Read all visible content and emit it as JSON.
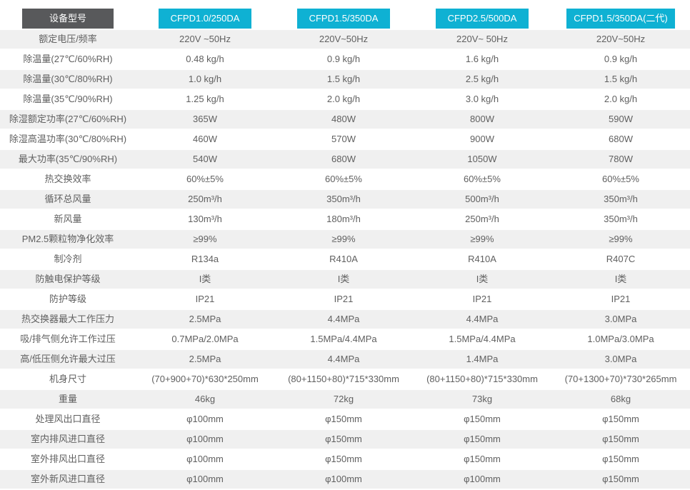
{
  "colors": {
    "corner_header_bg": "#58595b",
    "model_header_bg": "#0fb1d3",
    "alt_row_bg": "#f0f0f0",
    "row_bg": "#ffffff",
    "text": "#606060",
    "header_text": "#ffffff"
  },
  "chart_data": {
    "type": "table",
    "corner_label": "设备型号",
    "columns": [
      "CFPD1.0/250DA",
      "CFPD1.5/350DA",
      "CFPD2.5/500DA",
      "CFPD1.5/350DA(二代)"
    ],
    "rows": [
      {
        "label": "额定电压/频率",
        "values": [
          "220V ~50Hz",
          "220V~50Hz",
          "220V~ 50Hz",
          "220V~50Hz"
        ]
      },
      {
        "label": "除温量(27℃/60%RH)",
        "values": [
          "0.48 kg/h",
          "0.9 kg/h",
          "1.6 kg/h",
          "0.9 kg/h"
        ]
      },
      {
        "label": "除温量(30℃/80%RH)",
        "values": [
          "1.0 kg/h",
          "1.5 kg/h",
          "2.5 kg/h",
          "1.5 kg/h"
        ]
      },
      {
        "label": "除温量(35℃/90%RH)",
        "values": [
          "1.25 kg/h",
          "2.0 kg/h",
          "3.0 kg/h",
          "2.0 kg/h"
        ]
      },
      {
        "label": "除湿额定功率(27℃/60%RH)",
        "values": [
          "365W",
          "480W",
          "800W",
          "590W"
        ]
      },
      {
        "label": "除湿高温功率(30℃/80%RH)",
        "values": [
          "460W",
          "570W",
          "900W",
          "680W"
        ]
      },
      {
        "label": "最大功率(35℃/90%RH)",
        "values": [
          "540W",
          "680W",
          "1050W",
          "780W"
        ]
      },
      {
        "label": "热交换效率",
        "values": [
          "60%±5%",
          "60%±5%",
          "60%±5%",
          "60%±5%"
        ]
      },
      {
        "label": "循环总风量",
        "values": [
          "250m³/h",
          "350m³/h",
          "500m³/h",
          "350m³/h"
        ]
      },
      {
        "label": "新风量",
        "values": [
          "130m³/h",
          "180m³/h",
          "250m³/h",
          "350m³/h"
        ]
      },
      {
        "label": "PM2.5颗粒物净化效率",
        "values": [
          "≥99%",
          "≥99%",
          "≥99%",
          "≥99%"
        ]
      },
      {
        "label": "制冷剂",
        "values": [
          "R134a",
          "R410A",
          "R410A",
          "R407C"
        ]
      },
      {
        "label": "防触电保护等级",
        "values": [
          "I类",
          "I类",
          "I类",
          "I类"
        ]
      },
      {
        "label": "防护等级",
        "values": [
          "IP21",
          "IP21",
          "IP21",
          "IP21"
        ]
      },
      {
        "label": "热交换器最大工作压力",
        "values": [
          "2.5MPa",
          "4.4MPa",
          "4.4MPa",
          "3.0MPa"
        ]
      },
      {
        "label": "吸/排气侧允许工作过压",
        "values": [
          "0.7MPa/2.0MPa",
          "1.5MPa/4.4MPa",
          "1.5MPa/4.4MPa",
          "1.0MPa/3.0MPa"
        ]
      },
      {
        "label": "高/低压侧允许最大过压",
        "values": [
          "2.5MPa",
          "4.4MPa",
          "1.4MPa",
          "3.0MPa"
        ]
      },
      {
        "label": "机身尺寸",
        "values": [
          "(70+900+70)*630*250mm",
          "(80+1150+80)*715*330mm",
          "(80+1150+80)*715*330mm",
          "(70+1300+70)*730*265mm"
        ]
      },
      {
        "label": "重量",
        "values": [
          "46kg",
          "72kg",
          "73kg",
          "68kg"
        ]
      },
      {
        "label": "处理风出口直径",
        "values": [
          "φ100mm",
          "φ150mm",
          "φ150mm",
          "φ150mm"
        ]
      },
      {
        "label": "室内排风进口直径",
        "values": [
          "φ100mm",
          "φ150mm",
          "φ150mm",
          "φ150mm"
        ]
      },
      {
        "label": "室外排风出口直径",
        "values": [
          "φ100mm",
          "φ150mm",
          "φ150mm",
          "φ150mm"
        ]
      },
      {
        "label": "室外新风进口直径",
        "values": [
          "φ100mm",
          "φ100mm",
          "φ100mm",
          "φ150mm"
        ]
      }
    ]
  }
}
